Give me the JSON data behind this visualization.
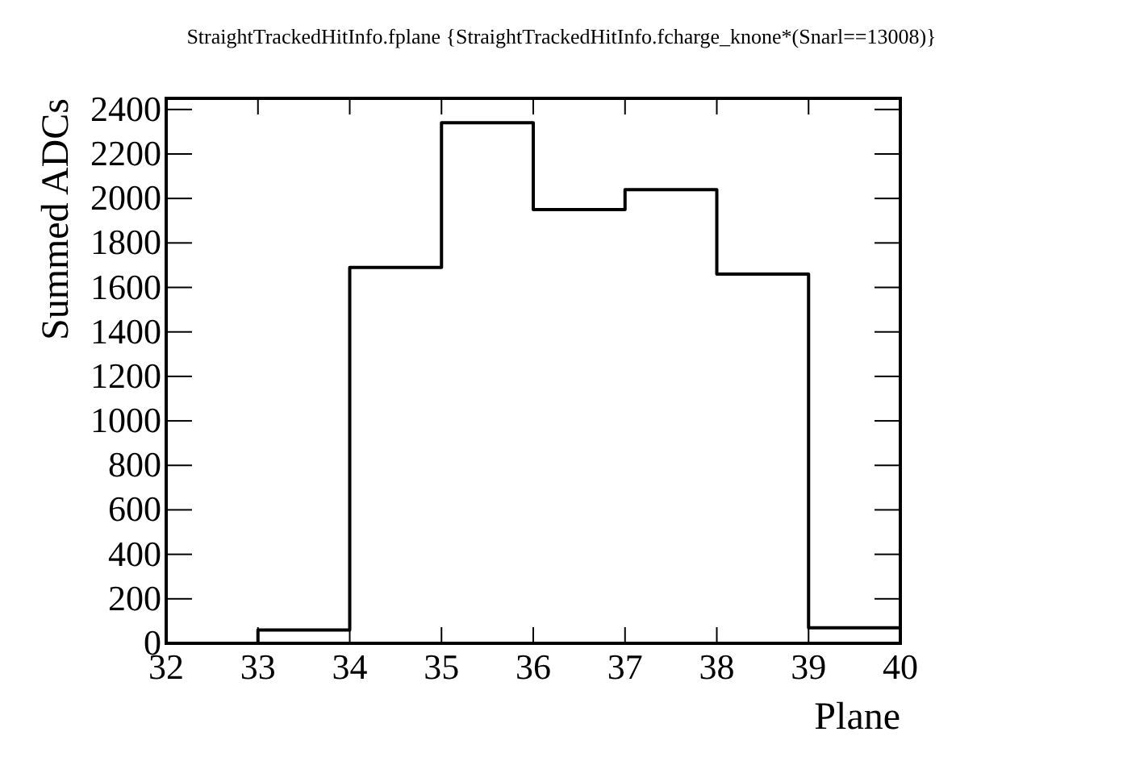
{
  "chart_data": {
    "type": "histogram",
    "title": "StraightTrackedHitInfo.fplane {StraightTrackedHitInfo.fcharge_knone*(Snarl==13008)}",
    "xlabel": "Plane",
    "ylabel": "Summed ADCs",
    "bins": [
      32,
      33,
      34,
      35,
      36,
      37,
      38,
      39,
      40
    ],
    "values": [
      0,
      60,
      1690,
      2340,
      1950,
      2040,
      1660,
      70
    ],
    "color": "#000000",
    "xlim": [
      32,
      40
    ],
    "xticks": [
      32,
      33,
      34,
      35,
      36,
      37,
      38,
      39,
      40
    ],
    "ylim": [
      0,
      2450
    ],
    "yticks": [
      0,
      200,
      400,
      600,
      800,
      1000,
      1200,
      1400,
      1600,
      1800,
      2000,
      2200,
      2400
    ],
    "grid": false
  }
}
